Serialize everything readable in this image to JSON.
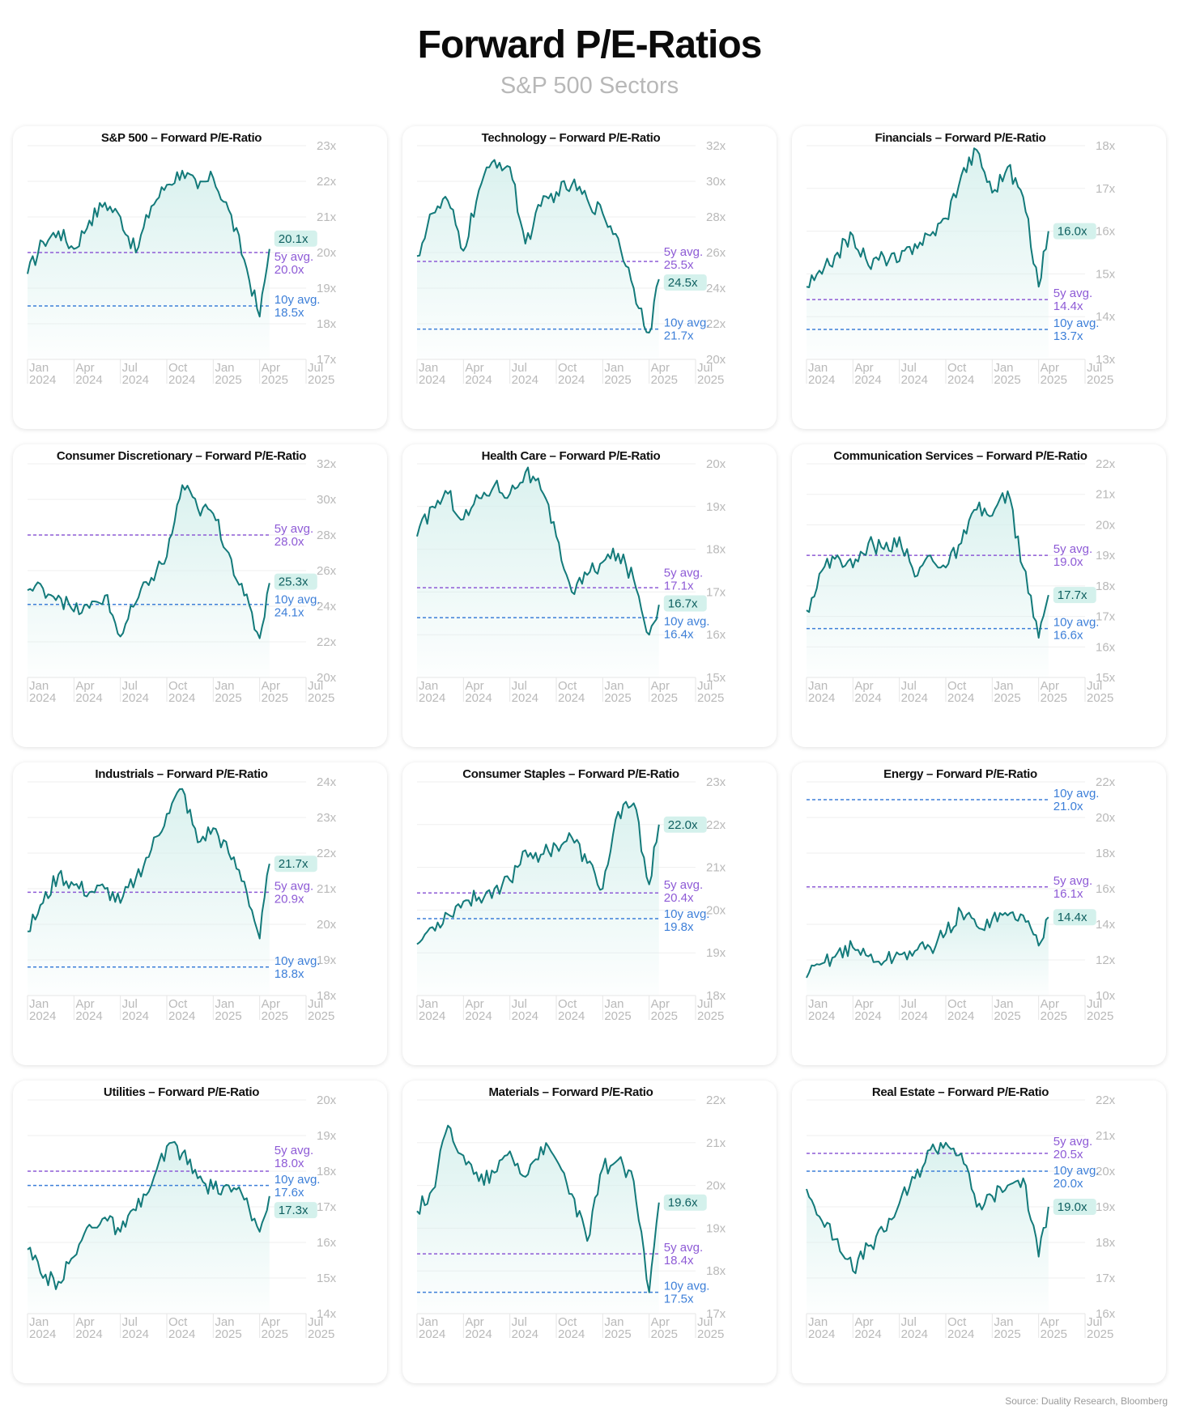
{
  "title": "Forward P/E-Ratios",
  "subtitle": "S&P 500 Sectors",
  "source": "Source: Duality Research, Bloomberg",
  "colors": {
    "series": "#137a7a",
    "fill": "#d4efec",
    "avg5": "#8e5bd6",
    "avg10": "#3d7fd8",
    "badge": "#d4f1ec"
  },
  "x_ticks": [
    {
      "month": "Jan",
      "year": "2024"
    },
    {
      "month": "Apr",
      "year": "2024"
    },
    {
      "month": "Jul",
      "year": "2024"
    },
    {
      "month": "Oct",
      "year": "2024"
    },
    {
      "month": "Jan",
      "year": "2025"
    },
    {
      "month": "Apr",
      "year": "2025"
    },
    {
      "month": "Jul",
      "year": "2025"
    }
  ],
  "chart_data": [
    {
      "type": "line",
      "title": "S&P 500 – Forward P/E-Ratio",
      "ylim": [
        17,
        23
      ],
      "y_ticks": [
        "17x",
        "18x",
        "19x",
        "20x",
        "21x",
        "22x",
        "23x"
      ],
      "x_range": [
        "2024-01",
        "2025-07"
      ],
      "series": [
        {
          "x": [
            "2024-01",
            "2024-02",
            "2024-03",
            "2024-04",
            "2024-05",
            "2024-06",
            "2024-07",
            "2024-08",
            "2024-09",
            "2024-10",
            "2024-11",
            "2024-12",
            "2025-01",
            "2025-02",
            "2025-03",
            "2025-04",
            "2025-04-20"
          ],
          "values": [
            19.4,
            20.3,
            20.6,
            20.1,
            20.9,
            21.4,
            21.0,
            20.0,
            21.3,
            21.9,
            22.3,
            21.8,
            22.1,
            21.2,
            19.8,
            18.2,
            20.1
          ]
        }
      ],
      "last_value": "20.1x",
      "avg5": {
        "value": 20.0,
        "label": "5y avg.",
        "value_label": "20.0x"
      },
      "avg10": {
        "value": 18.5,
        "label": "10y avg.",
        "value_label": "18.5x"
      }
    },
    {
      "type": "line",
      "title": "Technology – Forward P/E-Ratio",
      "ylim": [
        20,
        32
      ],
      "y_ticks": [
        "20x",
        "22x",
        "24x",
        "26x",
        "28x",
        "30x",
        "32x"
      ],
      "x_range": [
        "2024-01",
        "2025-07"
      ],
      "series": [
        {
          "x": [
            "2024-01",
            "2024-02",
            "2024-03",
            "2024-04",
            "2024-05",
            "2024-06",
            "2024-07",
            "2024-08",
            "2024-09",
            "2024-10",
            "2024-11",
            "2024-12",
            "2025-01",
            "2025-02",
            "2025-03",
            "2025-04",
            "2025-04-20"
          ],
          "values": [
            25.8,
            28.2,
            28.9,
            26.1,
            29.5,
            31.2,
            30.8,
            26.5,
            28.6,
            29.4,
            29.8,
            29.0,
            28.2,
            26.8,
            24.0,
            21.5,
            24.5
          ]
        }
      ],
      "last_value": "24.5x",
      "avg5": {
        "value": 25.5,
        "label": "5y avg.",
        "value_label": "25.5x"
      },
      "avg10": {
        "value": 21.7,
        "label": "10y avg.",
        "value_label": "21.7x"
      }
    },
    {
      "type": "line",
      "title": "Financials – Forward P/E-Ratio",
      "ylim": [
        13,
        18
      ],
      "y_ticks": [
        "13x",
        "14x",
        "15x",
        "16x",
        "17x",
        "18x"
      ],
      "x_range": [
        "2024-01",
        "2025-07"
      ],
      "series": [
        {
          "x": [
            "2024-01",
            "2024-02",
            "2024-03",
            "2024-04",
            "2024-05",
            "2024-06",
            "2024-07",
            "2024-08",
            "2024-09",
            "2024-10",
            "2024-11",
            "2024-12",
            "2025-01",
            "2025-02",
            "2025-03",
            "2025-04",
            "2025-04-20"
          ],
          "values": [
            14.7,
            15.0,
            15.5,
            15.9,
            15.2,
            15.4,
            15.3,
            15.7,
            15.9,
            16.3,
            17.3,
            17.9,
            16.9,
            17.5,
            16.8,
            14.7,
            16.0
          ]
        }
      ],
      "last_value": "16.0x",
      "avg5": {
        "value": 14.4,
        "label": "5y avg.",
        "value_label": "14.4x"
      },
      "avg10": {
        "value": 13.7,
        "label": "10y avg.",
        "value_label": "13.7x"
      }
    },
    {
      "type": "line",
      "title": "Consumer Discretionary – Forward P/E-Ratio",
      "ylim": [
        20,
        32
      ],
      "y_ticks": [
        "20x",
        "22x",
        "24x",
        "26x",
        "28x",
        "30x",
        "32x"
      ],
      "x_range": [
        "2024-01",
        "2025-07"
      ],
      "series": [
        {
          "x": [
            "2024-01",
            "2024-02",
            "2024-03",
            "2024-04",
            "2024-05",
            "2024-06",
            "2024-07",
            "2024-08",
            "2024-09",
            "2024-10",
            "2024-11",
            "2024-12",
            "2025-01",
            "2025-02",
            "2025-03",
            "2025-04",
            "2025-04-20"
          ],
          "values": [
            24.9,
            25.0,
            24.6,
            23.7,
            23.9,
            24.6,
            22.3,
            24.2,
            25.6,
            26.8,
            30.8,
            29.5,
            29.2,
            27.0,
            24.6,
            22.2,
            25.3
          ]
        }
      ],
      "last_value": "25.3x",
      "avg5": {
        "value": 28.0,
        "label": "5y avg.",
        "value_label": "28.0x"
      },
      "avg10": {
        "value": 24.1,
        "label": "10y avg.",
        "value_label": "24.1x"
      }
    },
    {
      "type": "line",
      "title": "Health Care – Forward P/E-Ratio",
      "ylim": [
        15,
        20
      ],
      "y_ticks": [
        "15x",
        "16x",
        "17x",
        "18x",
        "19x",
        "20x"
      ],
      "x_range": [
        "2024-01",
        "2025-07"
      ],
      "series": [
        {
          "x": [
            "2024-01",
            "2024-02",
            "2024-03",
            "2024-04",
            "2024-05",
            "2024-06",
            "2024-07",
            "2024-08",
            "2024-09",
            "2024-10",
            "2024-11",
            "2024-12",
            "2025-01",
            "2025-02",
            "2025-03",
            "2025-04",
            "2025-04-20"
          ],
          "values": [
            18.3,
            19.0,
            19.3,
            18.7,
            19.2,
            19.5,
            19.3,
            19.8,
            19.4,
            18.3,
            17.0,
            17.4,
            17.7,
            17.9,
            17.3,
            16.0,
            16.7
          ]
        }
      ],
      "last_value": "16.7x",
      "avg5": {
        "value": 17.1,
        "label": "5y avg.",
        "value_label": "17.1x"
      },
      "avg10": {
        "value": 16.4,
        "label": "10y avg.",
        "value_label": "16.4x"
      }
    },
    {
      "type": "line",
      "title": "Communication Services – Forward P/E-Ratio",
      "ylim": [
        15,
        22
      ],
      "y_ticks": [
        "15x",
        "16x",
        "17x",
        "18x",
        "19x",
        "20x",
        "21x",
        "22x"
      ],
      "x_range": [
        "2024-01",
        "2025-07"
      ],
      "series": [
        {
          "x": [
            "2024-01",
            "2024-02",
            "2024-03",
            "2024-04",
            "2024-05",
            "2024-06",
            "2024-07",
            "2024-08",
            "2024-09",
            "2024-10",
            "2024-11",
            "2024-12",
            "2025-01",
            "2025-02",
            "2025-03",
            "2025-04",
            "2025-04-20"
          ],
          "values": [
            17.2,
            18.5,
            19.0,
            18.6,
            19.4,
            19.2,
            19.6,
            18.3,
            19.0,
            18.6,
            19.4,
            20.5,
            20.3,
            21.1,
            18.6,
            16.3,
            17.7
          ]
        }
      ],
      "last_value": "17.7x",
      "avg5": {
        "value": 19.0,
        "label": "5y avg.",
        "value_label": "19.0x"
      },
      "avg10": {
        "value": 16.6,
        "label": "10y avg.",
        "value_label": "16.6x"
      }
    },
    {
      "type": "line",
      "title": "Industrials – Forward P/E-Ratio",
      "ylim": [
        18,
        24
      ],
      "y_ticks": [
        "18x",
        "19x",
        "20x",
        "21x",
        "22x",
        "23x",
        "24x"
      ],
      "x_range": [
        "2024-01",
        "2025-07"
      ],
      "series": [
        {
          "x": [
            "2024-01",
            "2024-02",
            "2024-03",
            "2024-04",
            "2024-05",
            "2024-06",
            "2024-07",
            "2024-08",
            "2024-09",
            "2024-10",
            "2024-11",
            "2024-12",
            "2025-01",
            "2025-02",
            "2025-03",
            "2025-04",
            "2025-04-20"
          ],
          "values": [
            19.8,
            20.6,
            21.4,
            21.1,
            20.9,
            21.0,
            20.6,
            21.3,
            22.1,
            23.1,
            23.8,
            22.3,
            22.7,
            22.0,
            21.2,
            19.6,
            21.7
          ]
        }
      ],
      "last_value": "21.7x",
      "avg5": {
        "value": 20.9,
        "label": "5y avg.",
        "value_label": "20.9x"
      },
      "avg10": {
        "value": 18.8,
        "label": "10y avg.",
        "value_label": "18.8x"
      }
    },
    {
      "type": "line",
      "title": "Consumer Staples – Forward P/E-Ratio",
      "ylim": [
        18,
        23
      ],
      "y_ticks": [
        "18x",
        "19x",
        "20x",
        "21x",
        "22x",
        "23x"
      ],
      "x_range": [
        "2024-01",
        "2025-07"
      ],
      "series": [
        {
          "x": [
            "2024-01",
            "2024-02",
            "2024-03",
            "2024-04",
            "2024-05",
            "2024-06",
            "2024-07",
            "2024-08",
            "2024-09",
            "2024-10",
            "2024-11",
            "2024-12",
            "2025-01",
            "2025-02",
            "2025-03",
            "2025-04",
            "2025-04-20"
          ],
          "values": [
            19.2,
            19.6,
            19.9,
            20.2,
            20.3,
            20.5,
            20.7,
            21.4,
            21.3,
            21.5,
            21.7,
            21.1,
            20.5,
            22.3,
            22.5,
            20.6,
            22.0
          ]
        }
      ],
      "last_value": "22.0x",
      "avg5": {
        "value": 20.4,
        "label": "5y avg.",
        "value_label": "20.4x"
      },
      "avg10": {
        "value": 19.8,
        "label": "10y avg.",
        "value_label": "19.8x"
      }
    },
    {
      "type": "line",
      "title": "Energy – Forward P/E-Ratio",
      "ylim": [
        10,
        22
      ],
      "y_ticks": [
        "10x",
        "12x",
        "14x",
        "16x",
        "18x",
        "20x",
        "22x"
      ],
      "x_range": [
        "2024-01",
        "2025-07"
      ],
      "series": [
        {
          "x": [
            "2024-01",
            "2024-02",
            "2024-03",
            "2024-04",
            "2024-05",
            "2024-06",
            "2024-07",
            "2024-08",
            "2024-09",
            "2024-10",
            "2024-11",
            "2024-12",
            "2025-01",
            "2025-02",
            "2025-03",
            "2025-04",
            "2025-04-20"
          ],
          "values": [
            11.0,
            11.8,
            12.4,
            12.7,
            12.2,
            11.9,
            12.3,
            12.5,
            12.7,
            13.5,
            14.7,
            13.9,
            14.3,
            14.5,
            14.5,
            12.8,
            14.4
          ]
        }
      ],
      "last_value": "14.4x",
      "avg5": {
        "value": 16.1,
        "label": "5y avg.",
        "value_label": "16.1x"
      },
      "avg10": {
        "value": 21.0,
        "label": "10y avg.",
        "value_label": "21.0x"
      }
    },
    {
      "type": "line",
      "title": "Utilities – Forward P/E-Ratio",
      "ylim": [
        14,
        20
      ],
      "y_ticks": [
        "14x",
        "15x",
        "16x",
        "17x",
        "18x",
        "19x",
        "20x"
      ],
      "x_range": [
        "2024-01",
        "2025-07"
      ],
      "series": [
        {
          "x": [
            "2024-01",
            "2024-02",
            "2024-03",
            "2024-04",
            "2024-05",
            "2024-06",
            "2024-07",
            "2024-08",
            "2024-09",
            "2024-10",
            "2024-11",
            "2024-12",
            "2025-01",
            "2025-02",
            "2025-03",
            "2025-04",
            "2025-04-20"
          ],
          "values": [
            15.8,
            15.0,
            14.9,
            15.6,
            16.5,
            16.7,
            16.3,
            16.9,
            17.6,
            18.7,
            18.5,
            17.8,
            17.5,
            17.6,
            17.2,
            16.3,
            17.3
          ]
        }
      ],
      "last_value": "17.3x",
      "avg5": {
        "value": 18.0,
        "label": "5y avg.",
        "value_label": "18.0x"
      },
      "avg10": {
        "value": 17.6,
        "label": "10y avg.",
        "value_label": "17.6x"
      }
    },
    {
      "type": "line",
      "title": "Materials – Forward P/E-Ratio",
      "ylim": [
        17,
        22
      ],
      "y_ticks": [
        "17x",
        "18x",
        "19x",
        "20x",
        "21x",
        "22x"
      ],
      "x_range": [
        "2024-01",
        "2025-07"
      ],
      "series": [
        {
          "x": [
            "2024-01",
            "2024-02",
            "2024-03",
            "2024-04",
            "2024-05",
            "2024-06",
            "2024-07",
            "2024-08",
            "2024-09",
            "2024-10",
            "2024-11",
            "2024-12",
            "2025-01",
            "2025-02",
            "2025-03",
            "2025-04",
            "2025-04-20"
          ],
          "values": [
            19.4,
            19.9,
            21.4,
            20.7,
            20.1,
            20.3,
            20.8,
            20.2,
            20.9,
            20.6,
            19.8,
            18.7,
            20.4,
            20.6,
            20.1,
            17.5,
            19.6
          ]
        }
      ],
      "last_value": "19.6x",
      "avg5": {
        "value": 18.4,
        "label": "5y avg.",
        "value_label": "18.4x"
      },
      "avg10": {
        "value": 17.5,
        "label": "10y avg.",
        "value_label": "17.5x"
      }
    },
    {
      "type": "line",
      "title": "Real Estate – Forward P/E-Ratio",
      "ylim": [
        16,
        22
      ],
      "y_ticks": [
        "16x",
        "17x",
        "18x",
        "19x",
        "20x",
        "21x",
        "22x"
      ],
      "x_range": [
        "2024-01",
        "2025-07"
      ],
      "series": [
        {
          "x": [
            "2024-01",
            "2024-02",
            "2024-03",
            "2024-04",
            "2024-05",
            "2024-06",
            "2024-07",
            "2024-08",
            "2024-09",
            "2024-10",
            "2024-11",
            "2024-12",
            "2025-01",
            "2025-02",
            "2025-03",
            "2025-04",
            "2025-04-20"
          ],
          "values": [
            19.5,
            18.6,
            18.1,
            17.2,
            17.9,
            18.3,
            19.1,
            19.8,
            20.6,
            20.8,
            20.5,
            19.0,
            19.3,
            19.6,
            19.8,
            17.6,
            19.0
          ]
        }
      ],
      "last_value": "19.0x",
      "avg5": {
        "value": 20.5,
        "label": "5y avg.",
        "value_label": "20.5x"
      },
      "avg10": {
        "value": 20.0,
        "label": "10y avg.",
        "value_label": "20.0x"
      }
    }
  ]
}
